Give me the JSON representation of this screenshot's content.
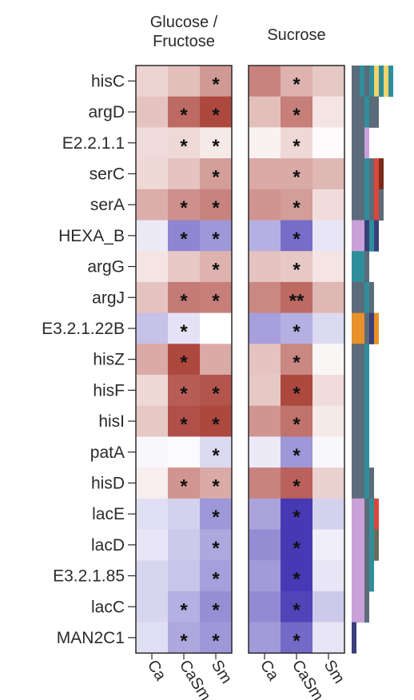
{
  "chart_data": {
    "type": "heatmap",
    "panels": [
      {
        "title": [
          "Glucose /",
          "Fructose"
        ],
        "columns": [
          "Ca",
          "CaSm",
          "Sm"
        ]
      },
      {
        "title": [
          "Sucrose"
        ],
        "columns": [
          "Ca",
          "CaSm",
          "Sm"
        ]
      }
    ],
    "rows": [
      "hisC",
      "argD",
      "E2.2.1.1",
      "serC",
      "serA",
      "HEXA_B",
      "argG",
      "argJ",
      "E3.2.1.22B",
      "hisZ",
      "hisF",
      "hisI",
      "patA",
      "hisD",
      "lacE",
      "lacD",
      "E3.2.1.85",
      "lacC",
      "MAN2C1"
    ],
    "values": [
      [
        [
          0.2,
          0.3,
          0.48
        ],
        [
          0.58,
          0.36,
          0.26
        ]
      ],
      [
        [
          0.28,
          0.7,
          0.86
        ],
        [
          0.3,
          0.6,
          0.12
        ]
      ],
      [
        [
          0.17,
          0.18,
          0.1
        ],
        [
          0.06,
          0.18,
          0.02
        ]
      ],
      [
        [
          0.18,
          0.28,
          0.46
        ],
        [
          0.4,
          0.4,
          0.34
        ]
      ],
      [
        [
          0.38,
          0.52,
          0.58
        ],
        [
          0.5,
          0.46,
          0.16
        ]
      ],
      [
        [
          -0.1,
          -0.58,
          -0.5
        ],
        [
          -0.38,
          -0.7,
          -0.12
        ]
      ],
      [
        [
          0.12,
          0.26,
          0.36
        ],
        [
          0.28,
          0.26,
          0.12
        ]
      ],
      [
        [
          0.28,
          0.62,
          0.6
        ],
        [
          0.56,
          0.7,
          0.34
        ]
      ],
      [
        [
          -0.3,
          -0.14,
          0.0
        ],
        [
          -0.46,
          -0.38,
          -0.18
        ]
      ],
      [
        [
          0.4,
          0.86,
          0.4
        ],
        [
          0.28,
          0.56,
          0.04
        ]
      ],
      [
        [
          0.18,
          0.76,
          0.8
        ],
        [
          0.26,
          0.86,
          0.16
        ]
      ],
      [
        [
          0.26,
          0.82,
          0.86
        ],
        [
          0.5,
          0.66,
          0.1
        ]
      ],
      [
        [
          -0.04,
          -0.02,
          -0.18
        ],
        [
          -0.1,
          -0.5,
          -0.04
        ]
      ],
      [
        [
          0.08,
          0.5,
          0.4
        ],
        [
          0.58,
          0.74,
          0.22
        ]
      ],
      [
        [
          -0.16,
          -0.22,
          -0.5
        ],
        [
          -0.44,
          -0.95,
          -0.22
        ]
      ],
      [
        [
          -0.12,
          -0.26,
          -0.42
        ],
        [
          -0.55,
          -0.95,
          -0.08
        ]
      ],
      [
        [
          -0.2,
          -0.28,
          -0.46
        ],
        [
          -0.48,
          -0.95,
          -0.12
        ]
      ],
      [
        [
          -0.2,
          -0.38,
          -0.54
        ],
        [
          -0.56,
          -0.9,
          -0.26
        ]
      ],
      [
        [
          -0.16,
          -0.42,
          -0.5
        ],
        [
          -0.48,
          -0.72,
          -0.12
        ]
      ]
    ],
    "significance": [
      [
        [
          "",
          "",
          "*"
        ],
        [
          "",
          "*",
          ""
        ]
      ],
      [
        [
          "",
          "*",
          "*"
        ],
        [
          "",
          "*",
          ""
        ]
      ],
      [
        [
          "",
          "*",
          "*"
        ],
        [
          "",
          "*",
          ""
        ]
      ],
      [
        [
          "",
          "",
          "*"
        ],
        [
          "",
          "*",
          ""
        ]
      ],
      [
        [
          "",
          "*",
          "*"
        ],
        [
          "",
          "*",
          ""
        ]
      ],
      [
        [
          "",
          "*",
          "*"
        ],
        [
          "",
          "*",
          ""
        ]
      ],
      [
        [
          "",
          "",
          "*"
        ],
        [
          "",
          "*",
          ""
        ]
      ],
      [
        [
          "",
          "*",
          "*"
        ],
        [
          "",
          "**",
          ""
        ]
      ],
      [
        [
          "",
          "*",
          ""
        ],
        [
          "",
          "*",
          ""
        ]
      ],
      [
        [
          "",
          "*",
          ""
        ],
        [
          "",
          "*",
          ""
        ]
      ],
      [
        [
          "",
          "*",
          "*"
        ],
        [
          "",
          "*",
          ""
        ]
      ],
      [
        [
          "",
          "*",
          "*"
        ],
        [
          "",
          "*",
          ""
        ]
      ],
      [
        [
          "",
          "",
          "*"
        ],
        [
          "",
          "*",
          ""
        ]
      ],
      [
        [
          "",
          "*",
          "*"
        ],
        [
          "",
          "*",
          ""
        ]
      ],
      [
        [
          "",
          "",
          "*"
        ],
        [
          "",
          "*",
          ""
        ]
      ],
      [
        [
          "",
          "",
          "*"
        ],
        [
          "",
          "*",
          ""
        ]
      ],
      [
        [
          "",
          "",
          "*"
        ],
        [
          "",
          "*",
          ""
        ]
      ],
      [
        [
          "",
          "*",
          "*"
        ],
        [
          "",
          "*",
          ""
        ]
      ],
      [
        [
          "",
          "*",
          "*"
        ],
        [
          "",
          "*",
          ""
        ]
      ]
    ],
    "color_scale": {
      "negative": "#3d2fb0",
      "zero": "#ffffff",
      "positive": "#a02a20"
    },
    "annotation_track": {
      "base_color": "#5b6b7a",
      "rows": [
        [
          "#5b6b7a",
          "#2e8f9a",
          "#5b6b7a",
          "#2e8f9a",
          "#f2d26b",
          "#2e8f9a",
          "#f2d26b",
          "#2e8f9a"
        ],
        [
          "#5b6b7a",
          "#2e8f9a",
          "#5b6b7a",
          "#5b6b7a"
        ],
        [
          "#5b6b7a",
          "#c9a0d8"
        ],
        [
          "#5b6b7a",
          "#2e8f9a",
          "#5b6b7a",
          "#d9473b",
          "#7a2a1a"
        ],
        [
          "#5b6b7a",
          "#2e8f9a",
          "#5b6b7a",
          "#d9473b",
          "#5b6b7a"
        ],
        [
          "#c9a0d8",
          "#3a3f7a",
          "#2e8f9a",
          "#3a3f7a"
        ],
        [
          "#2e8f9a",
          "#5b6b7a"
        ],
        [
          "#5b6b7a",
          "#2e8f9a",
          "#5b6b7a"
        ],
        [
          "#e8902a",
          "#5b6b7a",
          "#3a3f7a",
          "#e8902a"
        ],
        [
          "#5b6b7a",
          "#2e8f9a"
        ],
        [
          "#5b6b7a",
          "#2e8f9a"
        ],
        [
          "#5b6b7a",
          "#2e8f9a"
        ],
        [
          "#5b6b7a",
          "#2e8f9a"
        ],
        [
          "#5b6b7a",
          "#2e8f9a",
          "#5b6b7a"
        ],
        [
          "#c9a0d8",
          "#5b6b7a",
          "#2e8f9a",
          "#d9473b"
        ],
        [
          "#c9a0d8",
          "#5b6b7a",
          "#2e8f9a",
          "#6b6b5a"
        ],
        [
          "#c9a0d8",
          "#5b6b7a",
          "#2e8f9a"
        ],
        [
          "#c9a0d8",
          "#5b6b7a"
        ],
        [
          "#3a3f7a"
        ]
      ]
    }
  }
}
